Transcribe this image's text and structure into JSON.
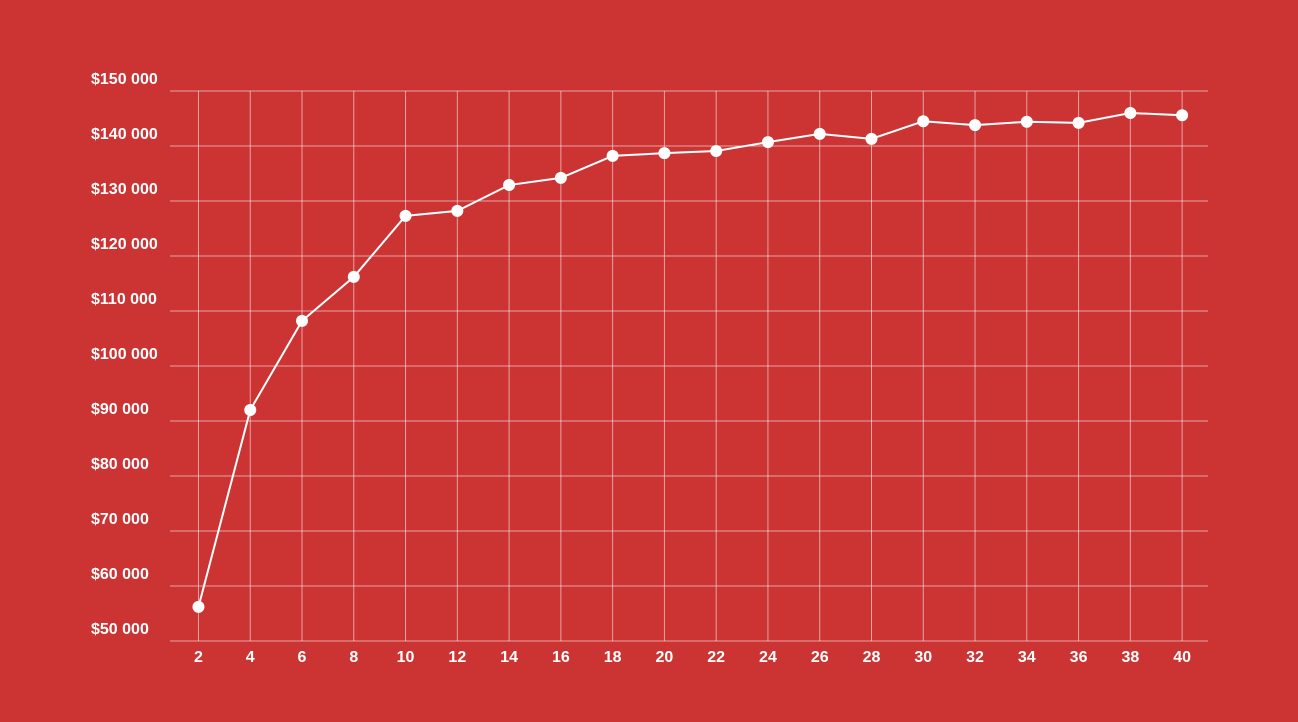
{
  "chart_data": {
    "type": "line",
    "x": [
      2,
      4,
      6,
      8,
      10,
      12,
      14,
      16,
      18,
      20,
      22,
      24,
      26,
      28,
      30,
      32,
      34,
      36,
      38,
      40
    ],
    "series": [
      {
        "color": "#ffffff",
        "values": [
          56200,
          92000,
          108200,
          116200,
          127300,
          128200,
          132900,
          134200,
          138200,
          138700,
          139100,
          140700,
          142200,
          141300,
          144500,
          143800,
          144400,
          144200,
          146000,
          145600
        ]
      }
    ],
    "xlim": [
      0.9,
      41
    ],
    "xticks": [
      2,
      4,
      6,
      8,
      10,
      12,
      14,
      16,
      18,
      20,
      22,
      24,
      26,
      28,
      30,
      32,
      34,
      36,
      38,
      40
    ],
    "ylim": [
      50000,
      150000
    ],
    "yticks": [
      {
        "value": 50000,
        "label": "$50 000"
      },
      {
        "value": 60000,
        "label": "$60 000"
      },
      {
        "value": 70000,
        "label": "$70 000"
      },
      {
        "value": 80000,
        "label": "$80 000"
      },
      {
        "value": 90000,
        "label": "$90 000"
      },
      {
        "value": 100000,
        "label": "$100 000"
      },
      {
        "value": 110000,
        "label": "$110 000"
      },
      {
        "value": 120000,
        "label": "$120 000"
      },
      {
        "value": 130000,
        "label": "$130 000"
      },
      {
        "value": 140000,
        "label": "$140 000"
      },
      {
        "value": 150000,
        "label": "$150 000"
      }
    ],
    "grid": true
  }
}
